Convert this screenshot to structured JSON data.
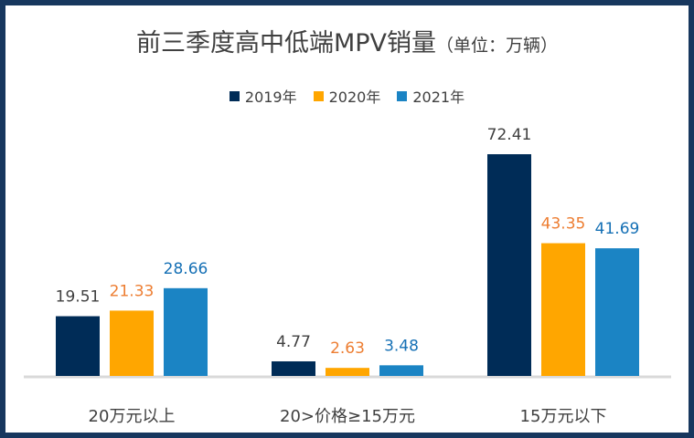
{
  "colors": {
    "frame": "#17375e",
    "axis": "#d9d9d9",
    "series_2019": "#002c57",
    "series_2020": "#ffa600",
    "series_2021": "#1b84c4",
    "label_2019": "#404040",
    "label_2020": "#ed7d31",
    "label_2021": "#1570b5"
  },
  "chart_data": {
    "type": "bar",
    "title": "前三季度高中低端MPV销量",
    "title_unit": "（单位：万辆）",
    "categories": [
      "20万元以上",
      "20>价格≥15万元",
      "15万元以下"
    ],
    "series": [
      {
        "name": "2019年",
        "values": [
          19.51,
          4.77,
          72.41
        ]
      },
      {
        "name": "2020年",
        "values": [
          21.33,
          2.63,
          43.35
        ]
      },
      {
        "name": "2021年",
        "values": [
          28.66,
          3.48,
          41.69
        ]
      }
    ],
    "data_labels": [
      [
        "19.51",
        "4.77",
        "72.41"
      ],
      [
        "21.33",
        "2.63",
        "43.35"
      ],
      [
        "28.66",
        "3.48",
        "41.69"
      ]
    ],
    "legend_position": "top",
    "grid": false,
    "ylim": [
      0,
      80
    ]
  }
}
